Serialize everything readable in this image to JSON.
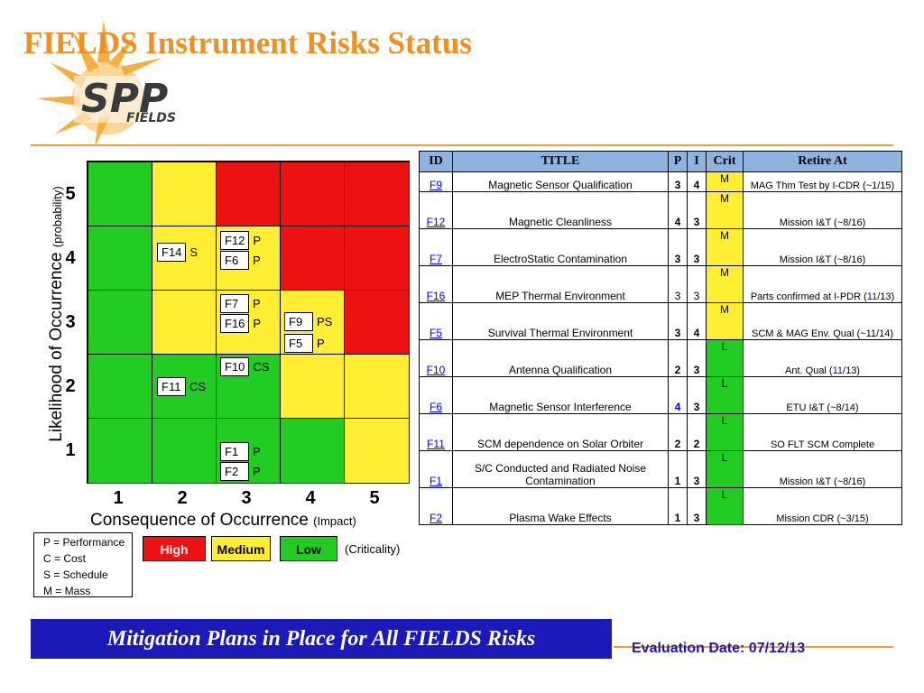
{
  "title": "FIELDS Instrument Risks Status",
  "logo": {
    "text_top": "SPP",
    "text_bottom": "FIELDS"
  },
  "matrix": {
    "y_axis_label": "Likelihood of Occurrence",
    "y_axis_sub": "(probability)",
    "x_axis_label": "Consequence of Occurrence",
    "x_axis_sub": "(Impact)",
    "y_ticks": [
      "5",
      "4",
      "3",
      "2",
      "1"
    ],
    "x_ticks": [
      "1",
      "2",
      "3",
      "4",
      "5"
    ],
    "colors": {
      "high": "#ee1111",
      "medium": "#ffee33",
      "low": "#22cc22"
    },
    "placements": [
      {
        "id": "F14",
        "type": "S"
      },
      {
        "id": "F12",
        "type": "P"
      },
      {
        "id": "F6",
        "type": "P"
      },
      {
        "id": "F7",
        "type": "P"
      },
      {
        "id": "F16",
        "type": "P"
      },
      {
        "id": "F9",
        "type": "PS"
      },
      {
        "id": "F5",
        "type": "P"
      },
      {
        "id": "F10",
        "type": "CS"
      },
      {
        "id": "F11",
        "type": "CS"
      },
      {
        "id": "F1",
        "type": "P"
      },
      {
        "id": "F2",
        "type": "P"
      }
    ]
  },
  "legend": {
    "items": [
      "P = Performance",
      "C = Cost",
      "S = Schedule",
      "M = Mass"
    ],
    "criticality": {
      "high": "High",
      "medium": "Medium",
      "low": "Low",
      "label": "(Criticality)"
    }
  },
  "table": {
    "headers": {
      "id": "ID",
      "title": "TITLE",
      "p": "P",
      "i": "I",
      "crit": "Crit",
      "retire": "Retire At"
    },
    "rows": [
      {
        "id": "F9",
        "title": "Magnetic Sensor Qualification",
        "p": "3",
        "i": "4",
        "crit": "M",
        "retire": "MAG Thm Test by I-CDR (~1/15)"
      },
      {
        "id": "F12",
        "title": "Magnetic Cleanliness",
        "p": "4",
        "i": "3",
        "crit": "M",
        "retire": "Mission I&T (~8/16)"
      },
      {
        "id": "F7",
        "title": "ElectroStatic Contamination",
        "p": "3",
        "i": "3",
        "crit": "M",
        "retire": "Mission I&T (~8/16)"
      },
      {
        "id": "F16",
        "title": "MEP Thermal Environment",
        "p": "3",
        "i": "3",
        "crit": "M",
        "retire_pre": "Parts confirmed at I-PDR (",
        "retire_hl": "11",
        "retire_post": "/13)"
      },
      {
        "id": "F5",
        "title": "Survival Thermal Environment",
        "p": "3",
        "i": "4",
        "crit": "M",
        "retire": "SCM & MAG Env. Qual (~11/14)"
      },
      {
        "id": "F10",
        "title": "Antenna Qualification",
        "p": "2",
        "i": "3",
        "crit": "L",
        "retire_pre": "Ant. Qual (",
        "retire_hl": "11",
        "retire_post": "/13)"
      },
      {
        "id": "F6",
        "title": "Magnetic Sensor Interference",
        "p": "4",
        "i": "3",
        "crit": "L",
        "retire": "ETU I&T (~8/14)"
      },
      {
        "id": "F11",
        "title": "SCM dependence on Solar Orbiter",
        "p": "2",
        "i": "2",
        "crit": "L",
        "retire": "SO FLT SCM Complete"
      },
      {
        "id": "F1",
        "title": "S/C Conducted and Radiated Noise Contamination",
        "p": "1",
        "i": "3",
        "crit": "L",
        "retire": "Mission I&T (~8/16)"
      },
      {
        "id": "F2",
        "title": "Plasma Wake Effects",
        "p": "1",
        "i": "3",
        "crit": "L",
        "retire": "Mission CDR (~3/15)"
      }
    ]
  },
  "banner": "Mitigation Plans in Place for All FIELDS Risks",
  "evaluation_date": "Evaluation Date: 07/12/13"
}
